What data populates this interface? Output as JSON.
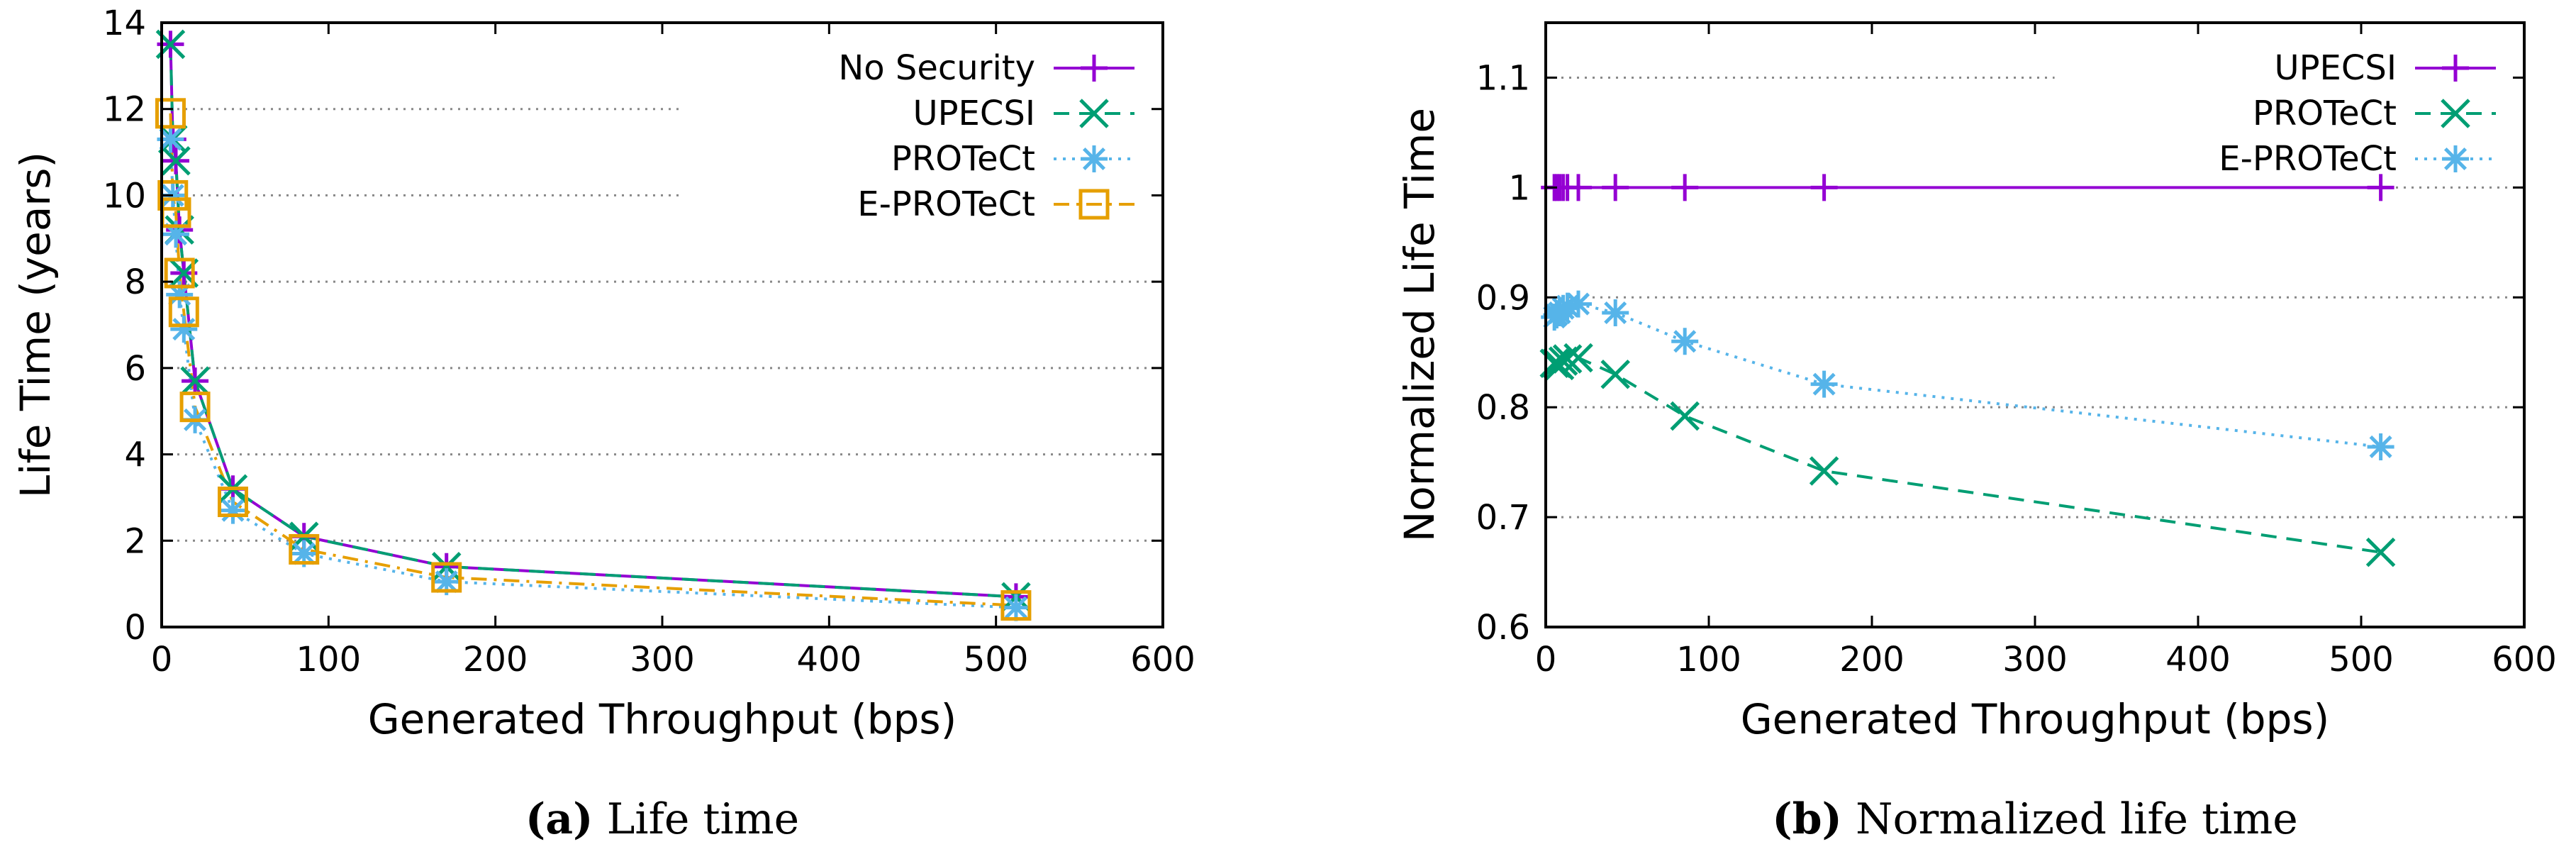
{
  "chart_data": [
    {
      "type": "line",
      "title": "",
      "caption_label": "(a)",
      "caption_text": " Life time",
      "xlabel": "Generated Throughput (bps)",
      "ylabel": "Life Time (years)",
      "xlim": [
        0,
        600
      ],
      "ylim": [
        0,
        14
      ],
      "xticks": [
        0,
        100,
        200,
        300,
        400,
        500,
        600
      ],
      "yticks": [
        0,
        2,
        4,
        6,
        8,
        10,
        12,
        14
      ],
      "x": [
        5.3,
        6.7,
        8.5,
        10.7,
        13.3,
        20,
        42.7,
        85.3,
        170.7,
        512
      ],
      "series": [
        {
          "name": "No Security",
          "color": "#9400d3",
          "dash": "solid",
          "marker": "plus",
          "values": [
            13.5,
            11.3,
            10.8,
            9.2,
            8.2,
            5.7,
            3.2,
            2.1,
            1.4,
            0.7
          ]
        },
        {
          "name": "UPECSI",
          "color": "#009e73",
          "dash": "dashed",
          "marker": "x",
          "values": [
            13.5,
            11.3,
            10.8,
            9.2,
            8.2,
            5.7,
            3.2,
            2.1,
            1.4,
            0.7
          ]
        },
        {
          "name": "PROTeCt",
          "color": "#56b4e9",
          "dash": "dotted",
          "marker": "star",
          "values": [
            11.3,
            10.0,
            9.1,
            7.7,
            6.9,
            4.8,
            2.7,
            1.7,
            1.05,
            0.45
          ]
        },
        {
          "name": "E-PROTeCt",
          "color": "#e69f00",
          "dash": "dashdot",
          "marker": "square",
          "values": [
            11.9,
            10.0,
            9.6,
            8.2,
            7.3,
            5.1,
            2.9,
            1.8,
            1.15,
            0.5
          ]
        }
      ],
      "legend_position": "top-right",
      "grid": "horizontal-dotted"
    },
    {
      "type": "line",
      "title": "",
      "caption_label": "(b)",
      "caption_text": " Normalized life time",
      "xlabel": "Generated Throughput (bps)",
      "ylabel": "Normalized Life Time",
      "xlim": [
        0,
        600
      ],
      "ylim": [
        0.6,
        1.15
      ],
      "xticks": [
        0,
        100,
        200,
        300,
        400,
        500,
        600
      ],
      "yticks": [
        0.6,
        0.7,
        0.8,
        0.9,
        1,
        1.1
      ],
      "ytick_labels": [
        "0.6",
        "0.7",
        "0.8",
        "0.9",
        "1",
        "1.1"
      ],
      "x": [
        5.3,
        6.7,
        8.5,
        10.7,
        13.3,
        20,
        42.7,
        85.3,
        170.7,
        512
      ],
      "series": [
        {
          "name": "UPECSI",
          "color": "#9400d3",
          "dash": "solid",
          "marker": "plus",
          "values": [
            1,
            1,
            1,
            1,
            1,
            1,
            1,
            1,
            1,
            1
          ]
        },
        {
          "name": "PROTeCt",
          "color": "#009e73",
          "dash": "dashed",
          "marker": "x",
          "values": [
            0.84,
            0.84,
            0.838,
            0.842,
            0.844,
            0.845,
            0.83,
            0.792,
            0.742,
            0.668
          ]
        },
        {
          "name": "E-PROTeCt",
          "color": "#56b4e9",
          "dash": "dotted",
          "marker": "star",
          "values": [
            0.882,
            0.884,
            0.886,
            0.89,
            0.892,
            0.894,
            0.886,
            0.86,
            0.821,
            0.764
          ]
        }
      ],
      "legend_position": "top-right",
      "grid": "horizontal-dotted"
    }
  ]
}
